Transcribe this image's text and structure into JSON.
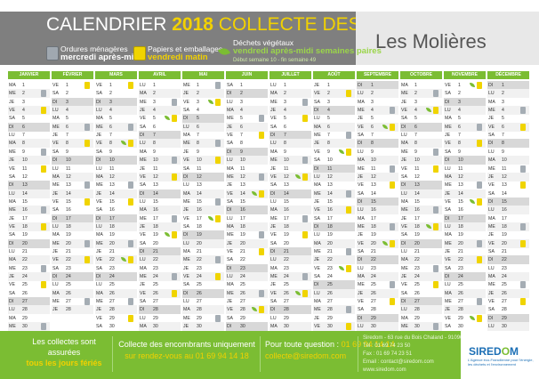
{
  "title": {
    "prefix": "CALENDRIER",
    "year": "2018",
    "rest": "COLLECTE DES DÉCHETS"
  },
  "town": "Les Molières",
  "legend": [
    {
      "label": "Ordures ménagères",
      "when": "mercredi après-midi",
      "icon": "grey-bin-icon"
    },
    {
      "label": "Papiers et emballages",
      "when": "vendredi matin",
      "icon": "yellow-bin-icon"
    },
    {
      "label": "Déchets végétaux",
      "when": "vendredi après-midi semaines paires",
      "note": "Début semaine 10 - fin semaine 49",
      "icon": "leaf-icon"
    }
  ],
  "months": [
    "JANVIER",
    "FÉVRIER",
    "MARS",
    "AVRIL",
    "MAI",
    "JUIN",
    "JUILLET",
    "AOÛT",
    "SEPTEMBRE",
    "OCTOBRE",
    "NOVEMBRE",
    "DÉCEMBRE"
  ],
  "first_weekday": [
    1,
    4,
    4,
    0,
    2,
    5,
    0,
    3,
    6,
    1,
    4,
    6
  ],
  "days_in_month": [
    31,
    28,
    31,
    30,
    31,
    30,
    31,
    31,
    30,
    31,
    30,
    31
  ],
  "day_abbr": [
    "LU",
    "MA",
    "ME",
    "JE",
    "VE",
    "SA",
    "DI"
  ],
  "footer": {
    "holidays_1": "Les collectes sont assurées",
    "holidays_2": "tous les jours fériés",
    "bulky_1": "Collecte des encombrants uniquement",
    "bulky_2": "sur rendez-vous au 01 69 94 14 18",
    "question": "Pour toute question :",
    "phone": "01 69 94 14 14",
    "email": "collecte@siredom.com",
    "address_1": "Siredom - 63 rue du Bois Chaland - 91090 Lisses",
    "address_2": "Tél : 01 69 74 23 50",
    "address_3": "Fax : 01 69 74 23 51",
    "address_4": "Email : contact@siredom.com",
    "address_5": "www.siredom.com"
  },
  "logo": {
    "text_a": "SIRED",
    "text_o": "O",
    "text_b": "M",
    "sub": "L'Agence éco-Francilienne pour l'énergie, les déchets et l'environnement"
  },
  "colors": {
    "green": "#7bbd33",
    "yellow": "#f2d100",
    "grey": "#7f7f7f"
  }
}
